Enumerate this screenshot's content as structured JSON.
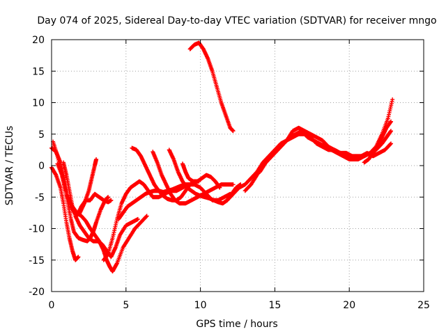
{
  "chart_data": {
    "type": "scatter",
    "title": "Day 074 of 2025, Sidereal Day-to-day VTEC variation (SDTVAR) for receiver mngo",
    "xlabel": "GPS time / hours",
    "ylabel": "SDTVAR / TECUs",
    "xlim": [
      0,
      25
    ],
    "ylim": [
      -20,
      20
    ],
    "xticks": [
      "0",
      "5",
      "10",
      "15",
      "20",
      "25"
    ],
    "yticks": [
      "-20",
      "-15",
      "-10",
      "-5",
      "0",
      "5",
      "10",
      "15",
      "20"
    ],
    "grid": true,
    "marker": "plus",
    "color": "#ff0000",
    "series": [
      {
        "x": [
          0.0,
          0.3,
          0.6,
          0.9,
          1.1,
          1.4,
          1.7,
          2.0,
          2.3,
          2.6,
          2.9,
          3.2,
          3.5,
          3.7,
          3.9,
          4.1,
          4.4,
          4.8,
          5.2,
          5.6,
          6.0,
          6.4
        ],
        "y": [
          2.8,
          2.2,
          0.5,
          -2.5,
          -5.0,
          -6.5,
          -7.5,
          -8.0,
          -8.8,
          -10.0,
          -11.0,
          -12.0,
          -13.5,
          -15.0,
          -16.0,
          -16.8,
          -15.5,
          -13.0,
          -11.5,
          -10.0,
          -9.0,
          -8.0
        ]
      },
      {
        "x": [
          0.1,
          0.4,
          0.7,
          1.0,
          1.3,
          1.6,
          1.9,
          2.2,
          2.5,
          2.7,
          2.9,
          3.0
        ],
        "y": [
          3.8,
          1.5,
          -1.5,
          -4.5,
          -6.5,
          -7.8,
          -7.5,
          -6.0,
          -4.0,
          -2.0,
          0.0,
          1.0
        ]
      },
      {
        "x": [
          0.0,
          0.3,
          0.6,
          0.8,
          1.0,
          1.2,
          1.4,
          1.6,
          1.8
        ],
        "y": [
          -0.3,
          -1.5,
          -3.5,
          -6.0,
          -9.0,
          -11.5,
          -13.5,
          -15.0,
          -14.5
        ]
      },
      {
        "x": [
          0.4,
          0.7,
          0.9,
          1.1,
          1.3,
          1.5,
          1.8,
          2.1,
          2.4,
          2.6,
          2.8,
          3.0,
          3.3,
          3.6,
          3.8
        ],
        "y": [
          0.3,
          -1.5,
          -3.5,
          -6.0,
          -8.5,
          -10.5,
          -11.5,
          -11.8,
          -12.0,
          -11.5,
          -10.5,
          -9.0,
          -7.0,
          -5.5,
          -5.0
        ]
      },
      {
        "x": [
          0.8,
          1.0,
          1.2,
          1.4,
          1.7,
          2.0,
          2.3,
          2.6,
          2.9,
          3.2,
          3.5,
          3.8,
          4.0
        ],
        "y": [
          0.5,
          -1.5,
          -4.0,
          -6.5,
          -8.0,
          -6.5,
          -5.5,
          -5.5,
          -4.5,
          -5.0,
          -5.5,
          -5.8,
          -5.5
        ]
      },
      {
        "x": [
          1.6,
          1.9,
          2.2,
          2.5,
          2.8,
          3.1,
          3.4,
          3.7,
          4.0,
          4.3,
          4.6,
          5.0,
          5.4,
          5.8
        ],
        "y": [
          -8.0,
          -9.5,
          -10.5,
          -11.5,
          -12.0,
          -12.0,
          -12.5,
          -13.5,
          -14.5,
          -13.0,
          -11.0,
          -9.5,
          -9.0,
          -8.5
        ]
      },
      {
        "x": [
          3.5,
          3.8,
          4.1,
          4.4,
          4.7,
          5.0,
          5.3,
          5.6,
          5.9,
          6.2,
          6.5,
          6.8,
          7.2,
          7.6,
          8.0,
          8.4,
          8.8,
          9.2,
          9.6,
          10.0,
          10.4,
          10.8,
          11.2,
          11.6,
          12.0
        ],
        "y": [
          -15.0,
          -14.0,
          -11.5,
          -8.5,
          -6.0,
          -4.5,
          -3.5,
          -3.0,
          -2.5,
          -3.0,
          -4.0,
          -5.0,
          -5.0,
          -4.5,
          -4.0,
          -4.0,
          -3.5,
          -3.0,
          -3.0,
          -3.5,
          -4.5,
          -5.5,
          -5.5,
          -5.0,
          -4.5
        ]
      },
      {
        "x": [
          4.5,
          4.8,
          5.1,
          5.4,
          5.7,
          6.0,
          6.3,
          6.6,
          6.9,
          7.2,
          7.5,
          7.8,
          8.1,
          8.4,
          8.7,
          9.0,
          9.3,
          9.6,
          9.9
        ],
        "y": [
          -8.5,
          -7.5,
          -6.5,
          -6.0,
          -5.5,
          -5.0,
          -4.5,
          -4.2,
          -4.0,
          -4.0,
          -4.2,
          -4.0,
          -3.8,
          -3.5,
          -3.2,
          -3.0,
          -3.0,
          -2.5,
          -2.5
        ]
      },
      {
        "x": [
          5.4,
          5.7,
          6.0,
          6.3,
          6.6,
          6.9,
          7.2,
          7.5,
          7.8,
          8.1,
          8.4,
          8.7,
          9.0,
          9.3,
          9.6
        ],
        "y": [
          2.8,
          2.5,
          1.5,
          0.0,
          -1.5,
          -3.0,
          -4.0,
          -4.8,
          -5.3,
          -5.5,
          -5.5,
          -5.0,
          -4.0,
          -3.0,
          -2.5
        ]
      },
      {
        "x": [
          6.8,
          7.1,
          7.4,
          7.7,
          8.0,
          8.3,
          8.6,
          9.0,
          9.4,
          9.8,
          10.2,
          10.6,
          11.0,
          11.4,
          11.8,
          12.2
        ],
        "y": [
          2.2,
          0.5,
          -1.5,
          -3.0,
          -4.5,
          -5.5,
          -6.0,
          -6.0,
          -5.5,
          -5.0,
          -4.5,
          -4.0,
          -3.5,
          -3.0,
          -3.0,
          -3.0
        ]
      },
      {
        "x": [
          7.9,
          8.2,
          8.5,
          8.8,
          9.1,
          9.4,
          9.7,
          10.0,
          10.3,
          10.6,
          10.9,
          11.2,
          11.5,
          11.8,
          12.1,
          12.4,
          12.7
        ],
        "y": [
          2.5,
          1.0,
          -1.0,
          -2.5,
          -3.5,
          -4.0,
          -4.5,
          -4.8,
          -5.0,
          -5.2,
          -5.5,
          -5.8,
          -6.0,
          -5.5,
          -4.5,
          -3.5,
          -3.0
        ]
      },
      {
        "x": [
          8.8,
          9.0,
          9.2,
          9.5,
          9.8,
          10.1,
          10.4,
          10.7,
          11.0,
          11.3
        ],
        "y": [
          0.3,
          -1.0,
          -2.0,
          -2.5,
          -2.5,
          -2.0,
          -1.5,
          -1.8,
          -2.5,
          -3.5
        ]
      },
      {
        "x": [
          9.3,
          9.6,
          9.9,
          10.2,
          10.5,
          10.8,
          11.1,
          11.4,
          11.7,
          12.0,
          12.2
        ],
        "y": [
          18.5,
          19.2,
          19.5,
          18.5,
          17.0,
          15.0,
          12.5,
          10.0,
          8.0,
          6.0,
          5.5
        ]
      },
      {
        "x": [
          11.8,
          12.2,
          12.6,
          13.0,
          13.4,
          13.8,
          14.2,
          14.6,
          15.0,
          15.4,
          15.8,
          16.2,
          16.6,
          17.0,
          17.4,
          17.8,
          18.2,
          18.6,
          19.0,
          19.4,
          19.8,
          20.2,
          20.6,
          21.0,
          21.4,
          21.8,
          22.2,
          22.5,
          22.8
        ],
        "y": [
          -5.5,
          -4.5,
          -3.5,
          -3.0,
          -2.0,
          -1.0,
          0.5,
          1.5,
          2.5,
          3.5,
          4.0,
          4.5,
          5.0,
          5.0,
          4.5,
          3.5,
          3.0,
          2.5,
          2.5,
          2.0,
          2.0,
          1.5,
          1.5,
          1.5,
          2.0,
          2.5,
          3.5,
          4.5,
          5.5
        ]
      },
      {
        "x": [
          13.0,
          13.4,
          13.8,
          14.2,
          14.6,
          15.0,
          15.4,
          15.8,
          16.2,
          16.6,
          17.0,
          17.4,
          17.8,
          18.2,
          18.6,
          19.0,
          19.4,
          19.8,
          20.2,
          20.6,
          21.0,
          21.4,
          21.8,
          22.2,
          22.6,
          22.9
        ],
        "y": [
          -4.0,
          -3.0,
          -1.5,
          0.0,
          1.0,
          2.0,
          3.0,
          4.0,
          5.5,
          6.0,
          5.5,
          5.0,
          4.5,
          4.0,
          3.0,
          2.5,
          2.0,
          1.5,
          1.0,
          1.0,
          1.5,
          2.0,
          3.0,
          5.0,
          7.5,
          10.5
        ]
      },
      {
        "x": [
          14.0,
          14.4,
          14.8,
          15.2,
          15.6,
          16.0,
          16.4,
          16.8,
          17.2,
          17.6,
          18.0,
          18.4,
          18.8,
          19.2,
          19.6,
          20.0,
          20.4,
          20.8,
          21.2,
          21.6,
          22.0,
          22.4,
          22.8
        ],
        "y": [
          -1.0,
          0.5,
          1.5,
          2.5,
          3.5,
          4.5,
          5.0,
          5.5,
          4.5,
          4.0,
          3.5,
          3.0,
          2.5,
          2.0,
          1.5,
          1.0,
          1.0,
          1.5,
          2.0,
          1.5,
          2.0,
          2.5,
          3.5
        ]
      },
      {
        "x": [
          21.0,
          21.3,
          21.6,
          21.9,
          22.2,
          22.5,
          22.8
        ],
        "y": [
          0.5,
          1.0,
          2.0,
          3.0,
          4.5,
          6.0,
          7.0
        ]
      }
    ]
  }
}
